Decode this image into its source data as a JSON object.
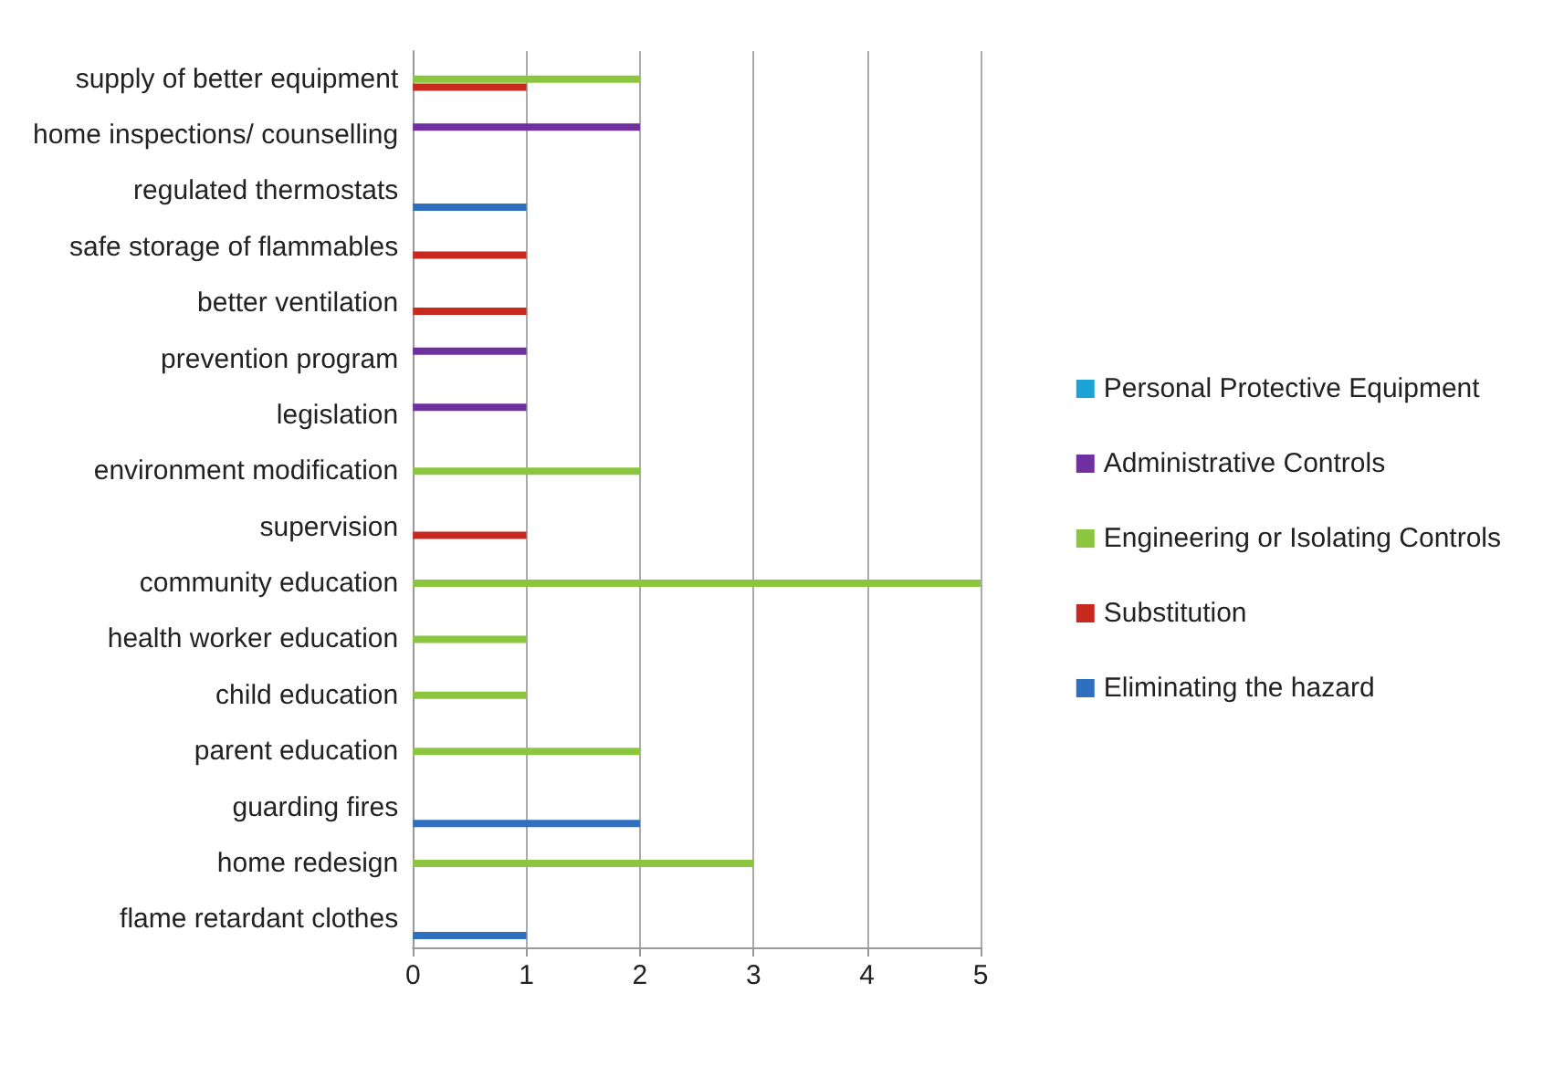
{
  "chart_data": {
    "type": "bar",
    "orientation": "horizontal",
    "categories": [
      "supply of better equipment",
      "home inspections/ counselling",
      "regulated thermostats",
      "safe storage of flammables",
      "better ventilation",
      "prevention program",
      "legislation",
      "environment modification",
      "supervision",
      "community education",
      "health worker education",
      "child education",
      "parent education",
      "guarding fires",
      "home redesign",
      "flame retardant clothes"
    ],
    "series": [
      {
        "name": "Personal Protective Equipment",
        "color": "#1aa3d4",
        "values": [
          null,
          null,
          null,
          null,
          null,
          null,
          null,
          null,
          null,
          null,
          null,
          null,
          null,
          null,
          null,
          null
        ]
      },
      {
        "name": "Administrative Controls",
        "color": "#7030a0",
        "values": [
          null,
          2,
          null,
          null,
          null,
          1,
          1,
          null,
          null,
          null,
          null,
          null,
          null,
          null,
          null,
          null
        ]
      },
      {
        "name": "Engineering or Isolating Controls",
        "color": "#8cc63f",
        "values": [
          2,
          null,
          null,
          null,
          null,
          null,
          null,
          2,
          null,
          5,
          1,
          1,
          2,
          null,
          3,
          null
        ]
      },
      {
        "name": "Substitution",
        "color": "#c8281e",
        "values": [
          1,
          null,
          null,
          1,
          1,
          null,
          null,
          null,
          1,
          null,
          null,
          null,
          null,
          null,
          null,
          null
        ]
      },
      {
        "name": "Eliminating the hazard",
        "color": "#2e6fbf",
        "values": [
          null,
          null,
          1,
          null,
          null,
          null,
          null,
          null,
          null,
          null,
          null,
          null,
          null,
          2,
          null,
          1
        ]
      }
    ],
    "xlim": [
      0,
      5
    ],
    "xticks": [
      0,
      1,
      2,
      3,
      4,
      5
    ],
    "grid": "x",
    "legend": "right"
  }
}
